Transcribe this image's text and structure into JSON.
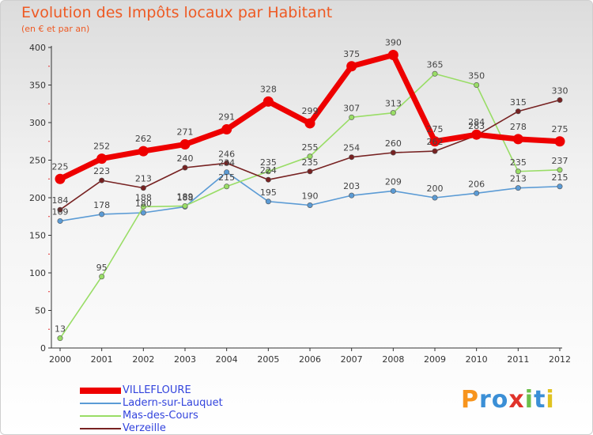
{
  "chart_data": {
    "type": "line",
    "title": "Evolution des Impôts locaux par Habitant",
    "subtitle": "(en € et par an)",
    "x": [
      "2000",
      "2001",
      "2002",
      "2003",
      "2004",
      "2005",
      "2006",
      "2007",
      "2008",
      "2009",
      "2010",
      "2011",
      "2012"
    ],
    "ylim": [
      0,
      400
    ],
    "yticks": [
      "0",
      "50",
      "100",
      "150",
      "200",
      "250",
      "300",
      "350",
      "400"
    ],
    "grid": false,
    "legend_position": "bottom-left",
    "series": [
      {
        "name": "VILLEFLOURE",
        "color": "#ee0000",
        "values": [
          225,
          252,
          262,
          271,
          291,
          328,
          299,
          375,
          390,
          275,
          284,
          278,
          275
        ],
        "labels": [
          "225",
          "252",
          "262",
          "271",
          "291",
          "328",
          "299",
          "375",
          "390",
          "275",
          "284",
          "278",
          "275"
        ]
      },
      {
        "name": "Ladern-sur-Lauquet",
        "color": "#5b9bd5",
        "values": [
          169,
          178,
          180,
          188,
          234,
          195,
          190,
          203,
          209,
          200,
          206,
          213,
          215
        ],
        "labels": [
          "169",
          "178",
          "180",
          "188",
          "234",
          "195",
          "190",
          "203",
          "209",
          "200",
          "206",
          "213",
          "215"
        ]
      },
      {
        "name": "Mas-des-Cours",
        "color": "#99dd66",
        "values": [
          13,
          95,
          188,
          189,
          215,
          235,
          255,
          307,
          313,
          365,
          350,
          235,
          237
        ],
        "labels": [
          "13",
          "95",
          "188",
          "189",
          "215",
          "235",
          "255",
          "307",
          "313",
          "365",
          "350",
          "235",
          "237"
        ]
      },
      {
        "name": "Verzeille",
        "color": "#772222",
        "values": [
          184,
          223,
          213,
          240,
          246,
          224,
          235,
          254,
          260,
          262,
          283,
          315,
          330
        ],
        "labels": [
          "184",
          "223",
          "213",
          "240",
          "246",
          "224",
          "235",
          "254",
          "260",
          "262",
          "283",
          "315",
          "330"
        ]
      }
    ]
  },
  "logo": {
    "letters": [
      "P",
      "r",
      "o",
      "x",
      "i",
      "t",
      "i"
    ],
    "colors": [
      "#f7941d",
      "#3b8fd6",
      "#3b8fd6",
      "#e0332b",
      "#6cbf4a",
      "#3b8fd6",
      "#e0c321"
    ]
  }
}
